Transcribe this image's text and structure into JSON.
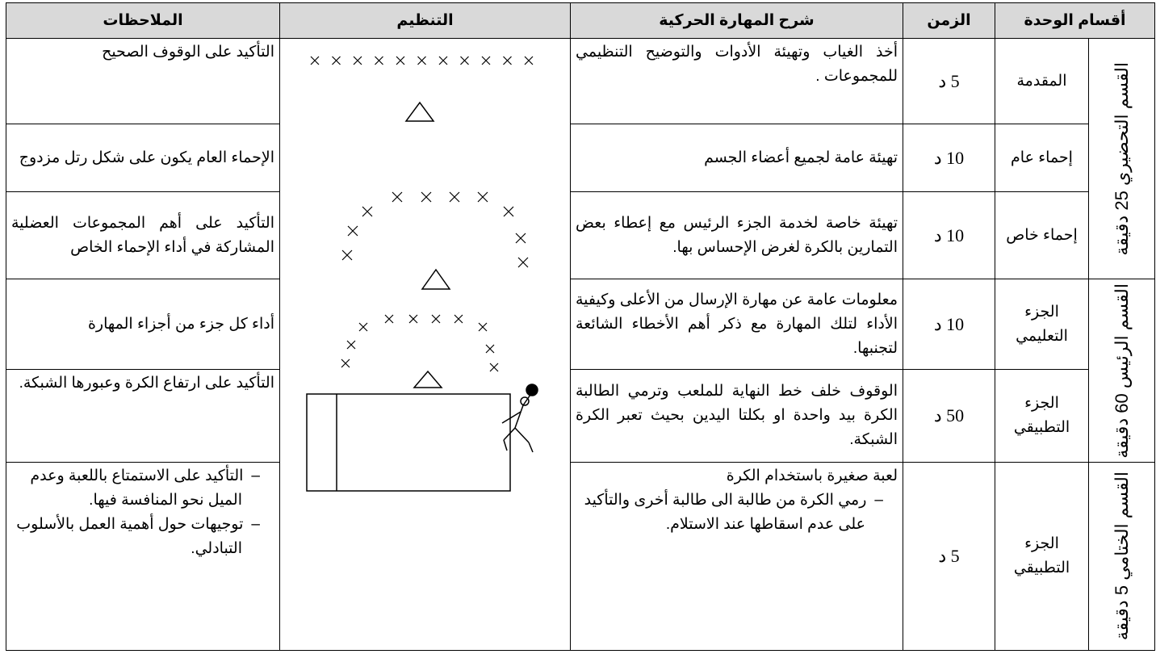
{
  "table": {
    "headers": [
      "أقسام الوحدة",
      "الزمن",
      "شرح المهارة الحركية",
      "التنظيم",
      "الملاحظات"
    ],
    "sections": [
      "القسم التحضيري 25 دقيقة",
      "القسم الرئيس 60 دقيقة",
      "القسم الختامي 5 دقيقة"
    ],
    "rows": [
      {
        "part": "المقدمة",
        "time": "5 د",
        "explanation": "أخذ الغياب وتهيئة الأدوات والتوضيح التنظيمي للمجموعات .",
        "notes": "التأكيد على الوقوف الصحيح"
      },
      {
        "part": "إحماء عام",
        "time": "10 د",
        "explanation": "تهيئة عامة لجميع أعضاء الجسم",
        "notes": "الإحماء العام يكون على شكل رتل مزدوج"
      },
      {
        "part": "إحماء خاص",
        "time": "10 د",
        "explanation": "تهيئة خاصة لخدمة الجزء الرئيس مع إعطاء بعض التمارين بالكرة لغرض الإحساس بها.",
        "notes": "التأكيد على أهم المجموعات العضلية المشاركة في أداء الإحماء الخاص"
      },
      {
        "part": "الجزء التعليمي",
        "time": "10 د",
        "explanation": "معلومات عامة عن مهارة الإرسال من الأعلى وكيفية الأداء لتلك المهارة مع ذكر أهم الأخطاء الشائعة لتجنبها.",
        "notes": "أداء كل جزء من أجزاء المهارة"
      },
      {
        "part": "الجزء التطبيقي",
        "time": "50 د",
        "explanation": "الوقوف خلف خط النهاية للملعب وترمي الطالبة الكرة بيد واحدة او بكلتا اليدين بحيث تعبر الكرة الشبكة.",
        "notes": "التأكيد على ارتفاع الكرة وعبورها الشبكة."
      },
      {
        "part": "الجزء التطبيقي",
        "time": "5 د",
        "explanation": "لعبة صغيرة باستخدام الكرة",
        "explanation_items": [
          "رمي الكرة من طالبة الى طالبة أخرى والتأكيد على عدم اسقاطها عند الاستلام."
        ],
        "notes_items": [
          "التأكيد على الاستمتاع باللعبة وعدم الميل نحو المنافسة فيها.",
          "توجيهات حول أهمية العمل بالأسلوب التبادلي."
        ]
      }
    ]
  }
}
